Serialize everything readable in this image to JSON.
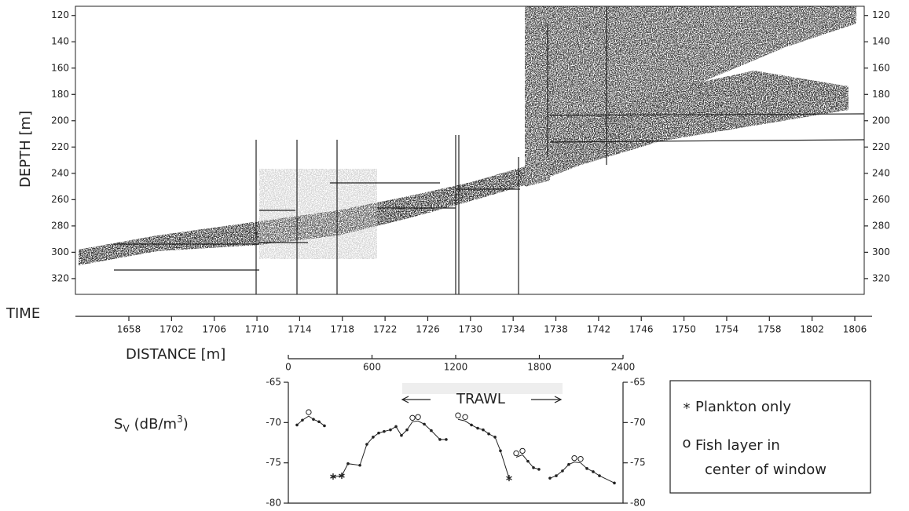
{
  "chart_data": [
    {
      "type": "echogram",
      "ylabel": "DEPTH [m]",
      "ylim": [
        113,
        332
      ],
      "yticks": [
        120,
        140,
        160,
        180,
        200,
        220,
        240,
        260,
        280,
        300,
        320
      ],
      "time_label": "TIME",
      "time_ticks": [
        "1658",
        "1702",
        "1706",
        "1710",
        "1714",
        "1718",
        "1722",
        "1726",
        "1730",
        "1734",
        "1738",
        "1742",
        "1746",
        "1750",
        "1754",
        "1758",
        "1802",
        "1806"
      ]
    },
    {
      "type": "line",
      "xlabel": "DISTANCE [m]",
      "xlim": [
        0,
        2400
      ],
      "xticks": [
        0,
        600,
        1200,
        1800,
        2400
      ],
      "ylim": [
        -80,
        -65
      ],
      "yticks": [
        -80,
        -75,
        -70,
        -65
      ],
      "ylabel": {
        "base": "S",
        "sub": "V",
        "unit": "(dB/m",
        "sup": "3",
        "close": ")"
      },
      "annotation": "TRAWL",
      "x": [
        62,
        101,
        146,
        180,
        220,
        259,
        null,
        321,
        383,
        428,
        513,
        563,
        608,
        648,
        687,
        732,
        772,
        811,
        851,
        890,
        930,
        975,
        1025,
        1087,
        1132,
        null,
        1217,
        1268,
        1313,
        1358,
        1397,
        1437,
        1482,
        1521,
        1583,
        null,
        1634,
        1679,
        1718,
        1758,
        1797,
        null,
        1876,
        1921,
        1966,
        2011,
        2051,
        2096,
        2141,
        2186,
        2231,
        2338
      ],
      "series": [
        {
          "color": "#222222",
          "values": [
            -70.3,
            -69.7,
            -69.2,
            -69.6,
            -69.9,
            -70.4,
            null,
            -76.7,
            -76.6,
            -75.1,
            -75.3,
            -72.7,
            -71.8,
            -71.3,
            -71.1,
            -70.9,
            -70.5,
            -71.6,
            -70.9,
            -69.9,
            -69.8,
            -70.2,
            -71.0,
            -72.1,
            -72.1,
            null,
            -69.6,
            -69.8,
            -70.3,
            -70.7,
            -70.9,
            -71.4,
            -71.8,
            -73.5,
            -76.9,
            null,
            -74.3,
            -74.0,
            -74.8,
            -75.6,
            -75.8,
            null,
            -76.9,
            -76.6,
            -76.0,
            -75.2,
            -74.9,
            -75.0,
            -75.7,
            -76.1,
            -76.6,
            -77.5
          ],
          "markers": [
            "dot",
            "dot",
            "circle",
            "dot",
            "dot",
            "dot",
            null,
            "star",
            "star",
            "dot",
            "dot",
            "dot",
            "dot",
            "dot",
            "dot",
            "dot",
            "dot",
            "dot",
            "dot",
            "circle",
            "circle",
            "dot",
            "dot",
            "dot",
            "dot",
            null,
            "circle",
            "circle",
            "dot",
            "dot",
            "dot",
            "dot",
            "dot",
            "dot",
            "star",
            null,
            "circle",
            "circle",
            "dot",
            "dot",
            "dot",
            null,
            "dot",
            "dot",
            "dot",
            "dot",
            "circle",
            "circle",
            "dot",
            "dot",
            "dot",
            "dot"
          ]
        }
      ],
      "legend": [
        {
          "symbol": "*",
          "lines": [
            "Plankton only"
          ]
        },
        {
          "symbol": "o",
          "lines": [
            "Fish layer in",
            "center of window"
          ]
        }
      ]
    }
  ]
}
